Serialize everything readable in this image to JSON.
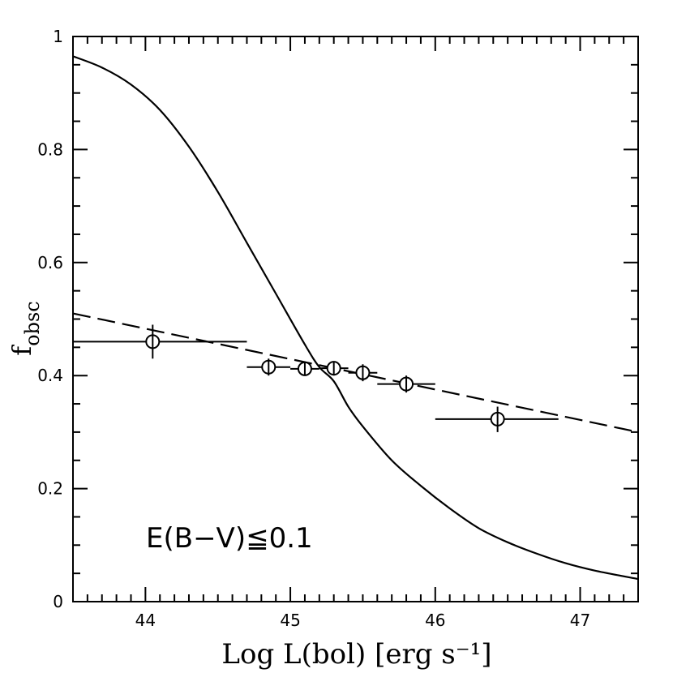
{
  "chart_data": {
    "type": "scatter",
    "title": "",
    "xlabel": "Log L(bol) [erg s⁻¹]",
    "ylabel_main": "f",
    "ylabel_sub": "obsc",
    "annotation": "E(B−V)≦0.1",
    "xlim": [
      43.5,
      47.4
    ],
    "ylim": [
      0,
      1
    ],
    "x_ticks": [
      44,
      45,
      46,
      47
    ],
    "x_tick_labels": [
      "44",
      "45",
      "46",
      "47"
    ],
    "y_ticks": [
      0,
      0.2,
      0.4,
      0.6,
      0.8,
      1.0
    ],
    "y_tick_labels": [
      "0",
      "0.2",
      "0.4",
      "0.6",
      "0.8",
      "1"
    ],
    "grid": false,
    "points": [
      {
        "x": 44.05,
        "y": 0.46,
        "xerr": [
          43.5,
          44.7
        ],
        "yerr": [
          0.43,
          0.49
        ]
      },
      {
        "x": 44.85,
        "y": 0.415,
        "xerr": [
          44.7,
          45.0
        ],
        "yerr": [
          0.4,
          0.43
        ]
      },
      {
        "x": 45.1,
        "y": 0.412,
        "xerr": [
          45.0,
          45.2
        ],
        "yerr": [
          0.4,
          0.425
        ]
      },
      {
        "x": 45.3,
        "y": 0.413,
        "xerr": [
          45.2,
          45.4
        ],
        "yerr": [
          0.4,
          0.425
        ]
      },
      {
        "x": 45.5,
        "y": 0.405,
        "xerr": [
          45.4,
          45.6
        ],
        "yerr": [
          0.39,
          0.42
        ]
      },
      {
        "x": 45.8,
        "y": 0.385,
        "xerr": [
          45.6,
          46.0
        ],
        "yerr": [
          0.37,
          0.4
        ]
      },
      {
        "x": 46.43,
        "y": 0.323,
        "xerr": [
          46.0,
          46.85
        ],
        "yerr": [
          0.3,
          0.345
        ]
      }
    ],
    "series": [
      {
        "name": "solid-curve",
        "style": "solid",
        "x": [
          43.5,
          43.7,
          43.9,
          44.1,
          44.3,
          44.5,
          44.7,
          44.9,
          45.1,
          45.2,
          45.3,
          45.4,
          45.5,
          45.7,
          45.9,
          46.1,
          46.3,
          46.5,
          46.7,
          46.9,
          47.1,
          47.4
        ],
        "y": [
          0.965,
          0.945,
          0.915,
          0.87,
          0.805,
          0.725,
          0.635,
          0.545,
          0.455,
          0.415,
          0.39,
          0.345,
          0.31,
          0.25,
          0.205,
          0.165,
          0.13,
          0.105,
          0.085,
          0.068,
          0.055,
          0.04
        ]
      },
      {
        "name": "dashed-fit",
        "style": "dashed",
        "x": [
          43.5,
          47.4
        ],
        "y": [
          0.51,
          0.3
        ]
      }
    ]
  }
}
